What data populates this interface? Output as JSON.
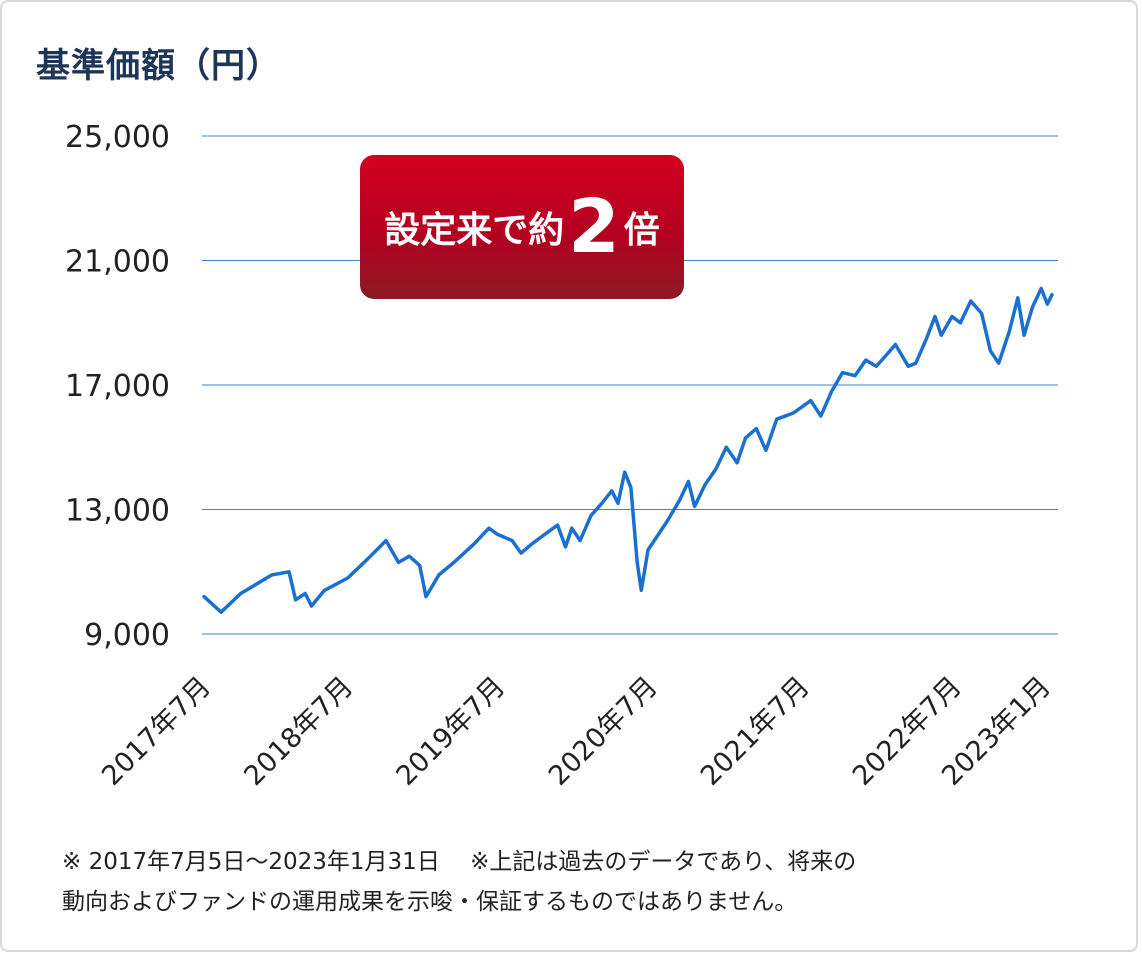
{
  "title": "基準価額（円）",
  "badge": {
    "prefix": "設定来で約",
    "number": "2",
    "suffix": "倍"
  },
  "note_line1": "※ 2017年7月5日～2023年1月31日　 ※上記は過去のデータであり、将来の",
  "note_line2": "動向およびファンドの運用成果を示唆・保証するものではありません。",
  "colors": {
    "line": "#1a6fd1",
    "grid": "#3a86d6",
    "title": "#1d3557",
    "badge": "#c2001f"
  },
  "chart_data": {
    "type": "line",
    "title": "基準価額（円）",
    "xlabel": "",
    "ylabel": "",
    "ylim": [
      9000,
      25000
    ],
    "y_ticks": [
      25000,
      21000,
      17000,
      13000,
      9000
    ],
    "y_tick_labels": [
      "25,000",
      "21,000",
      "17,000",
      "13,000",
      "9,000"
    ],
    "x_ticks": [
      "2017-07",
      "2018-07",
      "2019-07",
      "2020-07",
      "2021-07",
      "2022-07",
      "2023-01"
    ],
    "x_tick_labels": [
      "2017年7月",
      "2018年7月",
      "2019年7月",
      "2020年7月",
      "2021年7月",
      "2022年7月",
      "2023年1月"
    ],
    "xlim": [
      "2017-07-05",
      "2023-01-31"
    ],
    "grid": true,
    "series": [
      {
        "values": [
          [
            "2017-07-05",
            10200
          ],
          [
            "2017-08-15",
            9700
          ],
          [
            "2017-10-01",
            10300
          ],
          [
            "2017-12-15",
            10900
          ],
          [
            "2018-01-25",
            11000
          ],
          [
            "2018-02-10",
            10100
          ],
          [
            "2018-03-05",
            10300
          ],
          [
            "2018-03-20",
            9900
          ],
          [
            "2018-04-20",
            10400
          ],
          [
            "2018-06-15",
            10800
          ],
          [
            "2018-08-01",
            11400
          ],
          [
            "2018-09-15",
            12000
          ],
          [
            "2018-10-15",
            11300
          ],
          [
            "2018-11-10",
            11500
          ],
          [
            "2018-12-05",
            11200
          ],
          [
            "2018-12-20",
            10200
          ],
          [
            "2019-01-20",
            10900
          ],
          [
            "2019-02-25",
            11300
          ],
          [
            "2019-04-15",
            11900
          ],
          [
            "2019-05-20",
            12400
          ],
          [
            "2019-06-10",
            12200
          ],
          [
            "2019-07-15",
            12000
          ],
          [
            "2019-08-05",
            11600
          ],
          [
            "2019-09-01",
            11900
          ],
          [
            "2019-10-01",
            12200
          ],
          [
            "2019-11-01",
            12500
          ],
          [
            "2019-11-20",
            11800
          ],
          [
            "2019-12-05",
            12400
          ],
          [
            "2019-12-25",
            12000
          ],
          [
            "2020-01-20",
            12800
          ],
          [
            "2020-02-15",
            13200
          ],
          [
            "2020-03-10",
            13600
          ],
          [
            "2020-03-25",
            13200
          ],
          [
            "2020-04-10",
            14200
          ],
          [
            "2020-04-25",
            13700
          ],
          [
            "2020-05-10",
            11300
          ],
          [
            "2020-05-20",
            10400
          ],
          [
            "2020-06-05",
            11700
          ],
          [
            "2020-06-25",
            12100
          ],
          [
            "2020-07-20",
            12600
          ],
          [
            "2020-08-20",
            13300
          ],
          [
            "2020-09-10",
            13900
          ],
          [
            "2020-09-25",
            13100
          ],
          [
            "2020-10-20",
            13800
          ],
          [
            "2020-11-15",
            14300
          ],
          [
            "2020-12-10",
            15000
          ],
          [
            "2021-01-05",
            14500
          ],
          [
            "2021-01-25",
            15300
          ],
          [
            "2021-02-20",
            15600
          ],
          [
            "2021-03-15",
            14900
          ],
          [
            "2021-04-10",
            15900
          ],
          [
            "2021-05-20",
            16100
          ],
          [
            "2021-07-01",
            16500
          ],
          [
            "2021-07-25",
            16000
          ],
          [
            "2021-08-20",
            16800
          ],
          [
            "2021-09-15",
            17400
          ],
          [
            "2021-10-15",
            17300
          ],
          [
            "2021-11-10",
            17800
          ],
          [
            "2021-12-05",
            17600
          ],
          [
            "2021-12-25",
            17900
          ],
          [
            "2022-01-20",
            18300
          ],
          [
            "2022-02-20",
            17600
          ],
          [
            "2022-03-10",
            17700
          ],
          [
            "2022-04-05",
            18500
          ],
          [
            "2022-04-25",
            19200
          ],
          [
            "2022-05-10",
            18600
          ],
          [
            "2022-06-05",
            19200
          ],
          [
            "2022-06-25",
            19000
          ],
          [
            "2022-07-20",
            19700
          ],
          [
            "2022-08-15",
            19300
          ],
          [
            "2022-09-05",
            18100
          ],
          [
            "2022-09-25",
            17700
          ],
          [
            "2022-10-20",
            18700
          ],
          [
            "2022-11-10",
            19800
          ],
          [
            "2022-11-25",
            18600
          ],
          [
            "2022-12-15",
            19500
          ],
          [
            "2023-01-05",
            20100
          ],
          [
            "2023-01-20",
            19600
          ],
          [
            "2023-01-31",
            19900
          ]
        ]
      }
    ]
  }
}
